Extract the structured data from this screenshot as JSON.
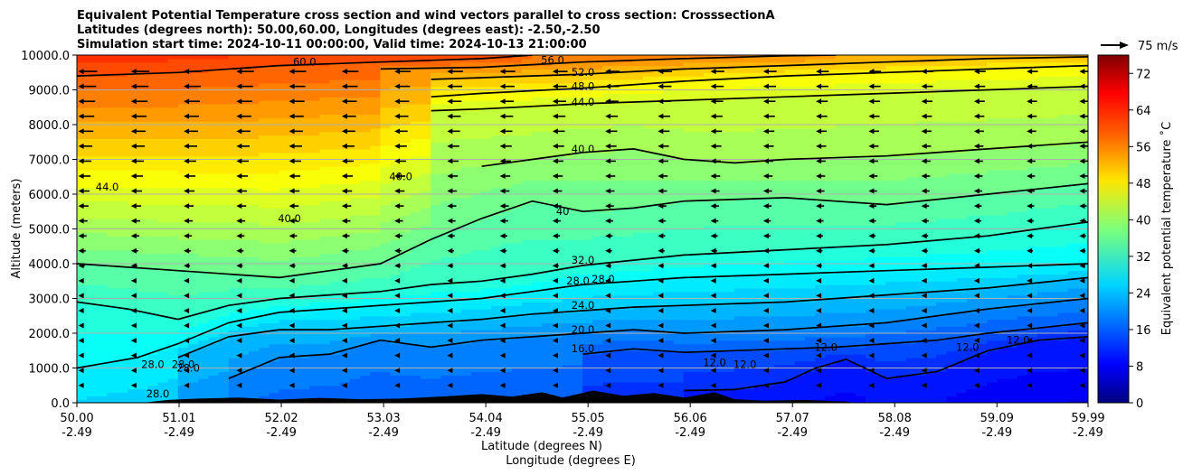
{
  "title_lines": [
    "Equivalent Potential Temperature cross section and wind vectors parallel to cross section: CrosssectionA",
    "Latitudes (degrees north): 50.00,60.00, Longitudes (degrees east): -2.50,-2.50",
    "Simulation start time: 2024-10-11 00:00:00, Valid time: 2024-10-13 21:00:00"
  ],
  "chart_data": {
    "type": "heatmap",
    "title": "Equivalent Potential Temperature cross section and wind vectors parallel to cross section: CrosssectionA",
    "ylabel": "Altitude (meters)",
    "xlabel_lines": [
      "Latitude (degrees N)",
      "Longitude (degrees E)"
    ],
    "x_range": [
      50.0,
      59.99
    ],
    "ylim": [
      0,
      10000
    ],
    "x_ticks": [
      {
        "lat": "50.00",
        "lon": "-2.49",
        "value": 50.0
      },
      {
        "lat": "51.01",
        "lon": "-2.49",
        "value": 51.01
      },
      {
        "lat": "52.02",
        "lon": "-2.49",
        "value": 52.02
      },
      {
        "lat": "53.03",
        "lon": "-2.49",
        "value": 53.03
      },
      {
        "lat": "54.04",
        "lon": "-2.49",
        "value": 54.04
      },
      {
        "lat": "55.05",
        "lon": "-2.49",
        "value": 55.05
      },
      {
        "lat": "56.06",
        "lon": "-2.49",
        "value": 56.06
      },
      {
        "lat": "57.07",
        "lon": "-2.49",
        "value": 57.07
      },
      {
        "lat": "58.08",
        "lon": "-2.49",
        "value": 58.08
      },
      {
        "lat": "59.09",
        "lon": "-2.49",
        "value": 59.09
      },
      {
        "lat": "59.99",
        "lon": "-2.49",
        "value": 59.99
      }
    ],
    "y_ticks": [
      {
        "label": "0.0",
        "value": 0
      },
      {
        "label": "1000.0",
        "value": 1000
      },
      {
        "label": "2000.0",
        "value": 2000
      },
      {
        "label": "3000.0",
        "value": 3000
      },
      {
        "label": "4000.0",
        "value": 4000
      },
      {
        "label": "5000.0",
        "value": 5000
      },
      {
        "label": "6000.0",
        "value": 6000
      },
      {
        "label": "7000.0",
        "value": 7000
      },
      {
        "label": "8000.0",
        "value": 8000
      },
      {
        "label": "9000.0",
        "value": 9000
      },
      {
        "label": "10000.0",
        "value": 10000
      }
    ],
    "grid": "horizontal",
    "colorbar": {
      "label": "Equivalent potential temperature ˚C",
      "range": [
        0,
        76
      ],
      "ticks": [
        {
          "label": "0",
          "value": 0
        },
        {
          "label": "8",
          "value": 8
        },
        {
          "label": "16",
          "value": 16
        },
        {
          "label": "24",
          "value": 24
        },
        {
          "label": "32",
          "value": 32
        },
        {
          "label": "40",
          "value": 40
        },
        {
          "label": "48",
          "value": 48
        },
        {
          "label": "56",
          "value": 56
        },
        {
          "label": "64",
          "value": 64
        },
        {
          "label": "72",
          "value": 72
        }
      ],
      "colormap": "jet",
      "placement": "right"
    },
    "wind_key": {
      "label": "75 m/s",
      "placement": "top-right"
    },
    "contour_lines": [
      {
        "level": 12,
        "points": [
          [
            56.0,
            350
          ],
          [
            56.5,
            380
          ],
          [
            57.0,
            600
          ],
          [
            57.3,
            1000
          ],
          [
            57.6,
            1250
          ],
          [
            58.0,
            700
          ],
          [
            58.5,
            900
          ],
          [
            59.0,
            1500
          ],
          [
            59.5,
            1800
          ],
          [
            59.99,
            1900
          ]
        ]
      },
      {
        "level": 16,
        "points": [
          [
            55.0,
            1400
          ],
          [
            55.5,
            1550
          ],
          [
            56.0,
            1450
          ],
          [
            56.5,
            1500
          ],
          [
            57.0,
            1550
          ],
          [
            57.5,
            1600
          ],
          [
            58.0,
            1700
          ],
          [
            58.5,
            1800
          ],
          [
            59.0,
            2000
          ],
          [
            59.5,
            2150
          ],
          [
            59.99,
            2300
          ]
        ]
      },
      {
        "level": 20,
        "points": [
          [
            51.5,
            700
          ],
          [
            52.0,
            1300
          ],
          [
            52.5,
            1400
          ],
          [
            53.0,
            1800
          ],
          [
            53.5,
            1600
          ],
          [
            54.0,
            1800
          ],
          [
            54.5,
            1900
          ],
          [
            55.0,
            2000
          ],
          [
            55.5,
            2100
          ],
          [
            56.0,
            2000
          ],
          [
            57.0,
            2100
          ],
          [
            58.0,
            2300
          ],
          [
            59.0,
            2700
          ],
          [
            59.99,
            3000
          ]
        ]
      },
      {
        "level": 24,
        "points": [
          [
            51.0,
            1300
          ],
          [
            51.5,
            1900
          ],
          [
            52.0,
            2100
          ],
          [
            52.5,
            2100
          ],
          [
            53.0,
            2200
          ],
          [
            53.5,
            2300
          ],
          [
            54.0,
            2400
          ],
          [
            54.5,
            2550
          ],
          [
            55.0,
            2650
          ],
          [
            55.5,
            2750
          ],
          [
            56.0,
            2800
          ],
          [
            57.0,
            2900
          ],
          [
            58.0,
            3100
          ],
          [
            59.0,
            3300
          ],
          [
            59.99,
            3600
          ]
        ]
      },
      {
        "level": 28,
        "points": [
          [
            50.0,
            1000
          ],
          [
            50.6,
            1300
          ],
          [
            51.0,
            1700
          ],
          [
            51.5,
            2300
          ],
          [
            52.0,
            2600
          ],
          [
            52.5,
            2700
          ],
          [
            53.0,
            2800
          ],
          [
            53.5,
            2900
          ],
          [
            54.0,
            3000
          ],
          [
            54.5,
            3200
          ],
          [
            55.0,
            3400
          ],
          [
            55.5,
            3500
          ],
          [
            56.0,
            3600
          ],
          [
            57.0,
            3700
          ],
          [
            58.0,
            3800
          ],
          [
            59.0,
            3900
          ],
          [
            59.99,
            4000
          ]
        ]
      },
      {
        "level": 32,
        "points": [
          [
            50.0,
            2900
          ],
          [
            50.5,
            2700
          ],
          [
            51.0,
            2400
          ],
          [
            51.5,
            2800
          ],
          [
            52.0,
            3000
          ],
          [
            52.5,
            3100
          ],
          [
            53.0,
            3200
          ],
          [
            53.5,
            3400
          ],
          [
            54.0,
            3500
          ],
          [
            54.5,
            3700
          ],
          [
            55.0,
            3950
          ],
          [
            55.5,
            4100
          ],
          [
            56.0,
            4250
          ],
          [
            57.0,
            4400
          ],
          [
            58.0,
            4550
          ],
          [
            59.0,
            4800
          ],
          [
            59.99,
            5200
          ]
        ]
      },
      {
        "level": 36,
        "points": [
          [
            50.0,
            4000
          ],
          [
            51.0,
            3800
          ],
          [
            52.0,
            3600
          ],
          [
            53.0,
            4000
          ],
          [
            53.5,
            4700
          ],
          [
            54.0,
            5300
          ],
          [
            54.5,
            5800
          ],
          [
            55.0,
            5500
          ],
          [
            55.5,
            5600
          ],
          [
            56.0,
            5800
          ],
          [
            57.0,
            5900
          ],
          [
            58.0,
            5700
          ],
          [
            59.0,
            6000
          ],
          [
            59.99,
            6300
          ]
        ]
      },
      {
        "level": 40,
        "points": [
          [
            54.0,
            6800
          ],
          [
            54.5,
            7000
          ],
          [
            55.0,
            7200
          ],
          [
            55.5,
            7300
          ],
          [
            56.0,
            7000
          ],
          [
            56.5,
            6900
          ],
          [
            57.0,
            7000
          ],
          [
            58.0,
            7100
          ],
          [
            59.0,
            7300
          ],
          [
            59.99,
            7500
          ]
        ]
      },
      {
        "level": 44,
        "points": [
          [
            53.5,
            8400
          ],
          [
            54.0,
            8450
          ],
          [
            55.0,
            8600
          ],
          [
            56.0,
            8700
          ],
          [
            57.0,
            8800
          ],
          [
            58.0,
            8900
          ],
          [
            59.0,
            9000
          ],
          [
            59.99,
            9100
          ]
        ]
      },
      {
        "level": 48,
        "points": [
          [
            53.5,
            8800
          ],
          [
            54.0,
            8900
          ],
          [
            55.0,
            9050
          ],
          [
            56.0,
            9250
          ],
          [
            57.0,
            9400
          ],
          [
            58.0,
            9500
          ],
          [
            59.0,
            9600
          ],
          [
            59.99,
            9700
          ]
        ]
      },
      {
        "level": 52,
        "points": [
          [
            53.5,
            9300
          ],
          [
            54.0,
            9350
          ],
          [
            55.0,
            9450
          ],
          [
            56.0,
            9600
          ],
          [
            57.0,
            9700
          ],
          [
            58.0,
            9800
          ],
          [
            59.0,
            9900
          ],
          [
            59.99,
            9950
          ]
        ]
      },
      {
        "level": 56,
        "points": [
          [
            53.0,
            9600
          ],
          [
            54.0,
            9650
          ],
          [
            55.0,
            9800
          ],
          [
            56.0,
            9900
          ],
          [
            57.0,
            9980
          ],
          [
            57.5,
            10000
          ]
        ]
      },
      {
        "level": 60,
        "points": [
          [
            50.0,
            9400
          ],
          [
            51.0,
            9500
          ],
          [
            52.0,
            9700
          ],
          [
            53.0,
            9800
          ],
          [
            54.0,
            9900
          ],
          [
            54.5,
            10000
          ]
        ]
      }
    ],
    "contour_labels": [
      {
        "text": "60.0",
        "x": 52.25,
        "y": 9700
      },
      {
        "text": "56.0",
        "x": 54.7,
        "y": 9750
      },
      {
        "text": "52.0",
        "x": 55.0,
        "y": 9400
      },
      {
        "text": "48.0",
        "x": 55.0,
        "y": 9000
      },
      {
        "text": "44.0",
        "x": 55.0,
        "y": 8550
      },
      {
        "text": "40.0",
        "x": 55.0,
        "y": 7200
      },
      {
        "text": "44.0",
        "x": 50.3,
        "y": 6100
      },
      {
        "text": "40.0",
        "x": 53.2,
        "y": 6400
      },
      {
        "text": "40.0",
        "x": 52.1,
        "y": 5200
      },
      {
        "text": "40",
        "x": 54.8,
        "y": 5400
      },
      {
        "text": "32.0",
        "x": 55.0,
        "y": 4000
      },
      {
        "text": "28.0",
        "x": 54.95,
        "y": 3400
      },
      {
        "text": "28.0",
        "x": 55.2,
        "y": 3450
      },
      {
        "text": "24.0",
        "x": 55.0,
        "y": 2700
      },
      {
        "text": "20.0",
        "x": 55.0,
        "y": 2000
      },
      {
        "text": "16.0",
        "x": 55.0,
        "y": 1450
      },
      {
        "text": "12.0",
        "x": 57.4,
        "y": 1500
      },
      {
        "text": "12.0",
        "x": 56.3,
        "y": 1050
      },
      {
        "text": "12.0",
        "x": 56.6,
        "y": 1000
      },
      {
        "text": "12.0",
        "x": 58.8,
        "y": 1500
      },
      {
        "text": "12.0",
        "x": 59.3,
        "y": 1700
      },
      {
        "text": "28.0",
        "x": 50.75,
        "y": 1000
      },
      {
        "text": "28.0",
        "x": 51.05,
        "y": 1000
      },
      {
        "text": "28.0",
        "x": 51.1,
        "y": 900
      },
      {
        "text": "28.0",
        "x": 50.8,
        "y": 150
      }
    ]
  }
}
